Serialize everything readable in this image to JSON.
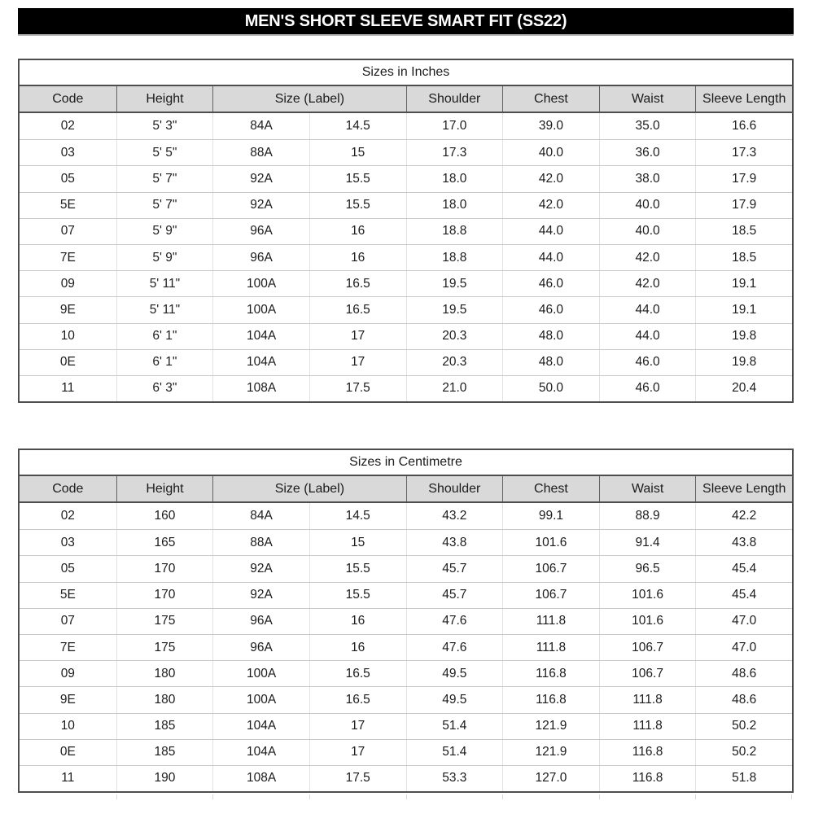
{
  "title": "MEN'S SHORT SLEEVE SMART FIT (SS22)",
  "colors": {
    "title_bg": "#000000",
    "title_text": "#ffffff",
    "header_bg": "#d9d9d9",
    "border_dark": "#4d4d4d",
    "grid_light": "#d9d9d9",
    "text": "#1c1c1c"
  },
  "tables": [
    {
      "caption": "Sizes in Inches",
      "columns": [
        {
          "label": "Code",
          "span": 1
        },
        {
          "label": "Height",
          "span": 1
        },
        {
          "label": "Size (Label)",
          "span": 2
        },
        {
          "label": "Shoulder",
          "span": 1
        },
        {
          "label": "Chest",
          "span": 1
        },
        {
          "label": "Waist",
          "span": 1
        },
        {
          "label": "Sleeve Length",
          "span": 1
        }
      ],
      "rows": [
        [
          "02",
          "5' 3\"",
          "84A",
          "14.5",
          "17.0",
          "39.0",
          "35.0",
          "16.6"
        ],
        [
          "03",
          "5' 5\"",
          "88A",
          "15",
          "17.3",
          "40.0",
          "36.0",
          "17.3"
        ],
        [
          "05",
          "5' 7\"",
          "92A",
          "15.5",
          "18.0",
          "42.0",
          "38.0",
          "17.9"
        ],
        [
          "5E",
          "5' 7\"",
          "92A",
          "15.5",
          "18.0",
          "42.0",
          "40.0",
          "17.9"
        ],
        [
          "07",
          "5' 9\"",
          "96A",
          "16",
          "18.8",
          "44.0",
          "40.0",
          "18.5"
        ],
        [
          "7E",
          "5' 9\"",
          "96A",
          "16",
          "18.8",
          "44.0",
          "42.0",
          "18.5"
        ],
        [
          "09",
          "5' 11\"",
          "100A",
          "16.5",
          "19.5",
          "46.0",
          "42.0",
          "19.1"
        ],
        [
          "9E",
          "5' 11\"",
          "100A",
          "16.5",
          "19.5",
          "46.0",
          "44.0",
          "19.1"
        ],
        [
          "10",
          "6' 1\"",
          "104A",
          "17",
          "20.3",
          "48.0",
          "44.0",
          "19.8"
        ],
        [
          "0E",
          "6' 1\"",
          "104A",
          "17",
          "20.3",
          "48.0",
          "46.0",
          "19.8"
        ],
        [
          "11",
          "6' 3\"",
          "108A",
          "17.5",
          "21.0",
          "50.0",
          "46.0",
          "20.4"
        ]
      ]
    },
    {
      "caption": "Sizes in Centimetre",
      "columns": [
        {
          "label": "Code",
          "span": 1
        },
        {
          "label": "Height",
          "span": 1
        },
        {
          "label": "Size (Label)",
          "span": 2
        },
        {
          "label": "Shoulder",
          "span": 1
        },
        {
          "label": "Chest",
          "span": 1
        },
        {
          "label": "Waist",
          "span": 1
        },
        {
          "label": "Sleeve Length",
          "span": 1
        }
      ],
      "rows": [
        [
          "02",
          "160",
          "84A",
          "14.5",
          "43.2",
          "99.1",
          "88.9",
          "42.2"
        ],
        [
          "03",
          "165",
          "88A",
          "15",
          "43.8",
          "101.6",
          "91.4",
          "43.8"
        ],
        [
          "05",
          "170",
          "92A",
          "15.5",
          "45.7",
          "106.7",
          "96.5",
          "45.4"
        ],
        [
          "5E",
          "170",
          "92A",
          "15.5",
          "45.7",
          "106.7",
          "101.6",
          "45.4"
        ],
        [
          "07",
          "175",
          "96A",
          "16",
          "47.6",
          "111.8",
          "101.6",
          "47.0"
        ],
        [
          "7E",
          "175",
          "96A",
          "16",
          "47.6",
          "111.8",
          "106.7",
          "47.0"
        ],
        [
          "09",
          "180",
          "100A",
          "16.5",
          "49.5",
          "116.8",
          "106.7",
          "48.6"
        ],
        [
          "9E",
          "180",
          "100A",
          "16.5",
          "49.5",
          "116.8",
          "111.8",
          "48.6"
        ],
        [
          "10",
          "185",
          "104A",
          "17",
          "51.4",
          "121.9",
          "111.8",
          "50.2"
        ],
        [
          "0E",
          "185",
          "104A",
          "17",
          "51.4",
          "121.9",
          "116.8",
          "50.2"
        ],
        [
          "11",
          "190",
          "108A",
          "17.5",
          "53.3",
          "127.0",
          "116.8",
          "51.8"
        ]
      ]
    }
  ]
}
